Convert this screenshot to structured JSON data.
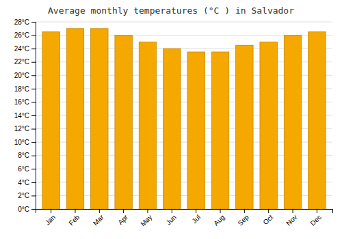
{
  "chart_data": {
    "type": "bar",
    "title": "Average monthly temperatures (°C ) in Salvador",
    "categories": [
      "Jan",
      "Feb",
      "Mar",
      "Apr",
      "May",
      "Jun",
      "Jul",
      "Aug",
      "Sep",
      "Oct",
      "Nov",
      "Dec"
    ],
    "values": [
      26.5,
      27.0,
      27.0,
      26.0,
      25.0,
      24.0,
      23.5,
      23.5,
      24.5,
      25.0,
      26.0,
      26.5
    ],
    "color": "#F5A800",
    "ylim": [
      0,
      28
    ],
    "yticks": [
      {
        "value": 0,
        "label": "0°C"
      },
      {
        "value": 2,
        "label": "2°C"
      },
      {
        "value": 4,
        "label": "4°C"
      },
      {
        "value": 6,
        "label": "6°C"
      },
      {
        "value": 8,
        "label": "8°C"
      },
      {
        "value": 10,
        "label": "10°C"
      },
      {
        "value": 12,
        "label": "12°C"
      },
      {
        "value": 14,
        "label": "14°C"
      },
      {
        "value": 16,
        "label": "16°C"
      },
      {
        "value": 18,
        "label": "18°C"
      },
      {
        "value": 20,
        "label": "20°C"
      },
      {
        "value": 22,
        "label": "22°C"
      },
      {
        "value": 24,
        "label": "24°C"
      },
      {
        "value": 26,
        "label": "26°C"
      },
      {
        "value": 28,
        "label": "28°C"
      }
    ],
    "grid": true
  }
}
